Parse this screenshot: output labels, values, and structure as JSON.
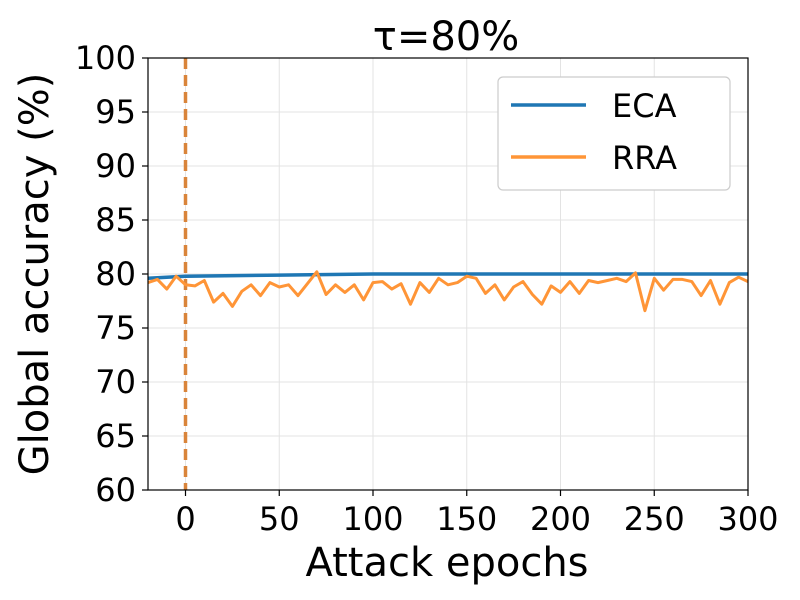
{
  "chart_data": {
    "type": "line",
    "title": "τ=80%",
    "xlabel": "Attack epochs",
    "ylabel": "Global accuracy (%)",
    "xlim": [
      -20,
      300
    ],
    "ylim": [
      60,
      100
    ],
    "xticks": [
      0,
      50,
      100,
      150,
      200,
      250,
      300
    ],
    "yticks": [
      60,
      65,
      70,
      75,
      80,
      85,
      90,
      95,
      100
    ],
    "grid": true,
    "legend_position": "top-right",
    "vline": {
      "x": 0,
      "style": "dashed",
      "color": "#d9843a"
    },
    "series": [
      {
        "name": "ECA",
        "color": "#1f77b4",
        "x": [
          -20,
          0,
          50,
          100,
          150,
          200,
          250,
          300
        ],
        "values": [
          79.6,
          79.8,
          79.9,
          80.0,
          80.0,
          80.0,
          80.0,
          80.0
        ]
      },
      {
        "name": "RRA",
        "color": "#ff9537",
        "x": [
          -20,
          -15,
          -10,
          -5,
          0,
          5,
          10,
          15,
          20,
          25,
          30,
          35,
          40,
          45,
          50,
          55,
          60,
          65,
          70,
          75,
          80,
          85,
          90,
          95,
          100,
          105,
          110,
          115,
          120,
          125,
          130,
          135,
          140,
          145,
          150,
          155,
          160,
          165,
          170,
          175,
          180,
          185,
          190,
          195,
          200,
          205,
          210,
          215,
          220,
          225,
          230,
          235,
          240,
          245,
          250,
          255,
          260,
          265,
          270,
          275,
          280,
          285,
          290,
          295,
          300
        ],
        "values": [
          79.2,
          79.5,
          78.6,
          79.8,
          79.0,
          78.9,
          79.4,
          77.4,
          78.2,
          77.0,
          78.4,
          79.0,
          78.0,
          79.2,
          78.8,
          79.0,
          78.0,
          79.1,
          80.2,
          78.1,
          79.0,
          78.3,
          79.0,
          77.6,
          79.2,
          79.3,
          78.6,
          79.1,
          77.2,
          79.2,
          78.3,
          79.6,
          79.0,
          79.2,
          79.8,
          79.6,
          78.2,
          79.0,
          77.6,
          78.8,
          79.3,
          78.1,
          77.2,
          78.9,
          78.3,
          79.3,
          78.2,
          79.4,
          79.2,
          79.4,
          79.6,
          79.3,
          80.1,
          76.6,
          79.6,
          78.5,
          79.5,
          79.5,
          79.3,
          78.0,
          79.4,
          77.2,
          79.2,
          79.7,
          79.3
        ]
      }
    ]
  }
}
